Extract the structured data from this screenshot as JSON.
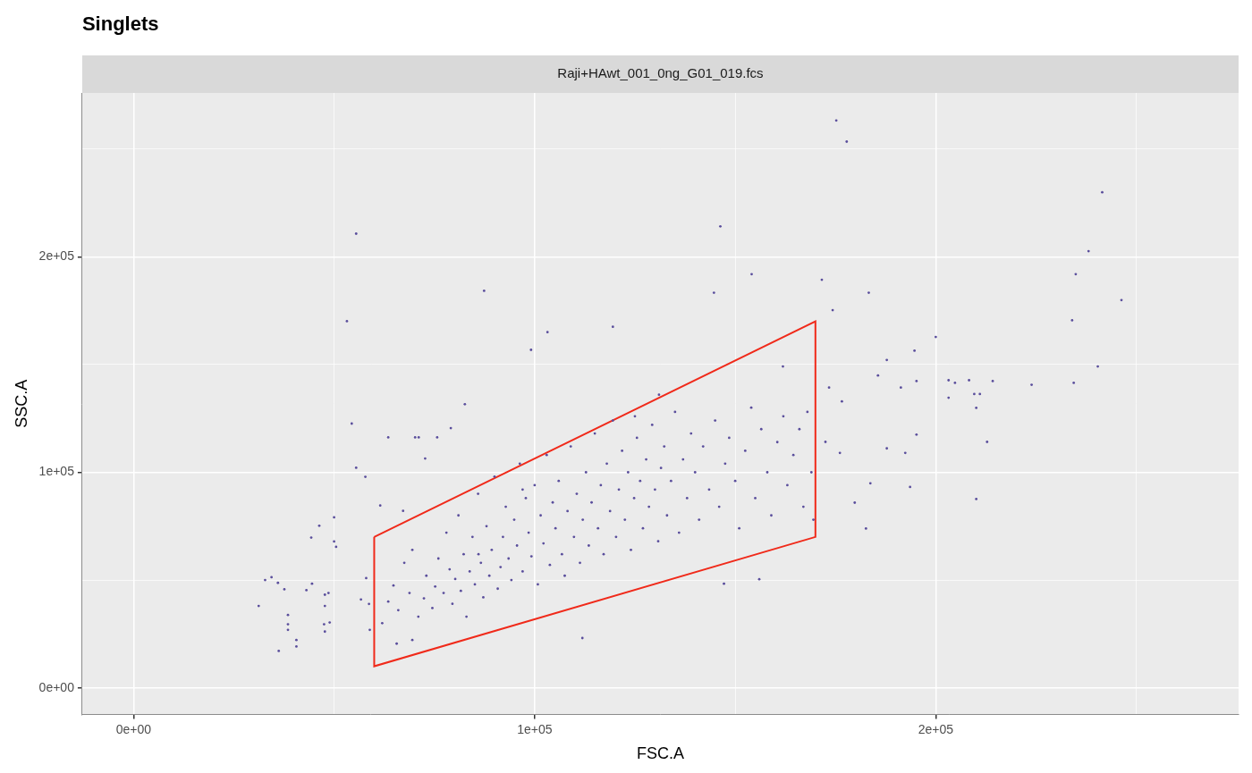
{
  "chart_data": {
    "type": "scatter",
    "title": "Singlets",
    "subtitle": "Raji+HAwt_001_0ng_G01_019.fcs",
    "x_label": "FSC.A",
    "y_label": "SSC.A",
    "xlim": [
      -12800,
      275500
    ],
    "ylim": [
      -12400,
      276000
    ],
    "xticks": [
      {
        "value": 0,
        "label": "0e+00"
      },
      {
        "value": 100000,
        "label": "1e+05"
      },
      {
        "value": 200000,
        "label": "2e+05"
      }
    ],
    "yticks": [
      {
        "value": 0,
        "label": "0e+00"
      },
      {
        "value": 100000,
        "label": "1e+05"
      },
      {
        "value": 200000,
        "label": "2e+05"
      }
    ],
    "grid": true,
    "series": [
      {
        "type": "scatter",
        "marker": "point",
        "color": "#5a4e9c",
        "x": [
          175200,
          177800,
          241500,
          238100,
          234900,
          246300,
          234000,
          240400,
          234400,
          146300,
          55500,
          53200,
          87400,
          154100,
          171600,
          174300,
          183300,
          144700,
          119500,
          103200,
          99100,
          200000,
          194700,
          161900,
          187800,
          185600,
          191300,
          195200,
          203200,
          204800,
          208300,
          214200,
          223900,
          203200,
          209600,
          211000,
          210100,
          212800,
          210100,
          195200,
          187800,
          192400,
          193600,
          183700,
          179800,
          182600,
          176100,
          172500,
          176600,
          173400,
          147200,
          156000,
          111900,
          31200,
          34400,
          36000,
          37600,
          36200,
          38500,
          38500,
          38500,
          40600,
          40600,
          43100,
          44500,
          44300,
          46300,
          47500,
          47700,
          47700,
          47700,
          50000,
          50000,
          50500,
          48900,
          48600,
          54400,
          55500,
          57800,
          56700,
          58000,
          58700,
          58900,
          32800,
          61500,
          63500,
          67200,
          70200,
          71100,
          72700,
          75700,
          79100,
          82600,
          65600,
          69500,
          62000,
          63500,
          64800,
          66000,
          67500,
          68800,
          69500,
          71000,
          72400,
          73000,
          74500,
          75200,
          76000,
          77300,
          78000,
          78800,
          79500,
          80200,
          81000,
          81600,
          82300,
          83000,
          83800,
          84500,
          85100,
          85900,
          86600,
          87200,
          88000,
          88700,
          89300,
          90000,
          90800,
          91500,
          92100,
          92800,
          93500,
          94200,
          94900,
          95600,
          96300,
          97000,
          97800,
          98500,
          99200,
          100000,
          100800,
          101500,
          102200,
          103000,
          103800,
          104500,
          105200,
          106000,
          106800,
          107500,
          108200,
          109000,
          109800,
          110500,
          111300,
          112000,
          112800,
          113500,
          114200,
          115000,
          115800,
          116500,
          117200,
          118000,
          118800,
          119500,
          120300,
          121000,
          121800,
          122500,
          123300,
          124000,
          124800,
          125500,
          126300,
          127000,
          127800,
          128500,
          129300,
          130000,
          130800,
          131500,
          132300,
          133000,
          134000,
          135000,
          136000,
          137000,
          138000,
          139000,
          140000,
          141000,
          142000,
          143500,
          145000,
          146000,
          147500,
          148500,
          150000,
          151000,
          152500,
          154000,
          155000,
          156500,
          158000,
          159000,
          160500,
          162000,
          163000,
          164500,
          166000,
          167000,
          168000,
          169000,
          169500,
          131000,
          125000,
          97000,
          86000
        ],
        "values": [
          263200,
          253400,
          229900,
          202600,
          191900,
          179900,
          170500,
          149100,
          141500,
          214100,
          210700,
          170100,
          184200,
          191900,
          189300,
          175200,
          183300,
          183300,
          167500,
          165000,
          156800,
          162800,
          156400,
          149100,
          152100,
          144900,
          139300,
          142300,
          142700,
          141500,
          142700,
          142300,
          140600,
          134600,
          136300,
          136300,
          129900,
          114100,
          87600,
          117500,
          111100,
          109000,
          93200,
          94900,
          85900,
          73900,
          109000,
          114100,
          132900,
          139300,
          48300,
          50400,
          23100,
          38000,
          51300,
          48700,
          45700,
          17100,
          29500,
          33800,
          26900,
          22200,
          19200,
          45300,
          48300,
          69700,
          75200,
          29500,
          26100,
          38000,
          43200,
          79100,
          67900,
          65400,
          30300,
          44000,
          122600,
          102100,
          97900,
          41000,
          50900,
          38900,
          26900,
          50000,
          84600,
          116200,
          82100,
          116200,
          116200,
          106400,
          116200,
          120500,
          131600,
          20500,
          22200,
          30000,
          40000,
          47500,
          36000,
          58000,
          44000,
          64000,
          33000,
          41500,
          52000,
          37000,
          47000,
          60000,
          44000,
          72000,
          55000,
          39000,
          50500,
          80000,
          45000,
          62000,
          33000,
          54000,
          70000,
          48000,
          90000,
          58000,
          42000,
          75000,
          52000,
          64000,
          98000,
          46000,
          56000,
          70000,
          84000,
          60000,
          50000,
          78000,
          66000,
          104000,
          54000,
          88000,
          72000,
          61000,
          94000,
          48000,
          80000,
          67000,
          108000,
          57000,
          86000,
          74000,
          96000,
          62000,
          52000,
          82000,
          112000,
          70000,
          90000,
          58000,
          78000,
          100000,
          66000,
          86000,
          118000,
          74000,
          94000,
          62000,
          104000,
          82000,
          124000,
          70000,
          92000,
          110000,
          78000,
          100000,
          64000,
          88000,
          116000,
          96000,
          74000,
          106000,
          84000,
          122000,
          92000,
          68000,
          102000,
          112000,
          80000,
          96000,
          128000,
          72000,
          106000,
          88000,
          118000,
          100000,
          78000,
          112000,
          92000,
          124000,
          84000,
          104000,
          116000,
          96000,
          74000,
          110000,
          130000,
          88000,
          120000,
          100000,
          80000,
          114000,
          126000,
          94000,
          108000,
          120000,
          84000,
          128000,
          100000,
          78000,
          136000,
          126000,
          92000,
          62000
        ]
      },
      {
        "type": "line",
        "line_style": "solid",
        "color": "#f02a1a",
        "x": [
          60000,
          170000,
          170000,
          60000,
          60000
        ],
        "values": [
          70000,
          170000,
          70000,
          10000,
          70000
        ]
      }
    ]
  }
}
